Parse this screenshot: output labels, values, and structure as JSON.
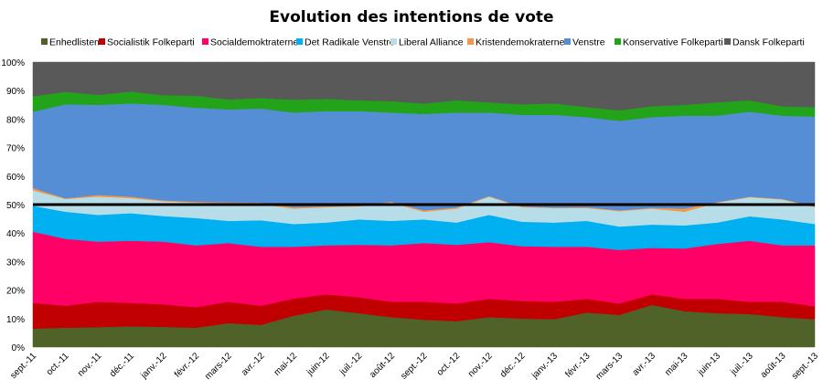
{
  "chart_data": {
    "type": "area",
    "stacked": "percent",
    "title": "Evolution des intentions de vote",
    "xlabel": "",
    "ylabel": "",
    "ylim": [
      0,
      100
    ],
    "yticks": [
      "0%",
      "10%",
      "20%",
      "30%",
      "40%",
      "50%",
      "60%",
      "70%",
      "80%",
      "90%",
      "100%"
    ],
    "grid": false,
    "legend": "top",
    "reference_line": 50,
    "reference_line_color": "#000000",
    "categories": [
      "sept.-11",
      "oct.-11",
      "nov.-11",
      "déc.-11",
      "janv.-12",
      "févr.-12",
      "mars-12",
      "avr.-12",
      "mai-12",
      "juin-12",
      "juil.-12",
      "août-12",
      "sept.-12",
      "oct.-12",
      "nov.-12",
      "déc.-12",
      "janv.-13",
      "févr.-13",
      "mars-13",
      "avr.-13",
      "mai-13",
      "juin-13",
      "juil.-13",
      "août-13",
      "sept.-13"
    ],
    "series": [
      {
        "name": "Enhedlisten",
        "color": "#4f6228",
        "values": [
          6.5,
          6.8,
          7.0,
          7.3,
          7.1,
          6.8,
          8.4,
          7.8,
          11.0,
          13.2,
          11.9,
          10.5,
          9.6,
          9.1,
          10.5,
          10.0,
          9.8,
          12.1,
          11.3,
          14.8,
          12.6,
          11.9,
          11.6,
          10.5,
          9.8
        ]
      },
      {
        "name": "Socialistik Folkeparti",
        "color": "#c00000",
        "values": [
          9.0,
          7.7,
          8.9,
          8.2,
          7.9,
          7.2,
          7.5,
          6.7,
          6.0,
          5.3,
          5.6,
          5.4,
          6.3,
          6.2,
          6.4,
          6.2,
          6.1,
          4.8,
          4.0,
          3.7,
          4.3,
          5.0,
          4.3,
          5.4,
          4.5
        ]
      },
      {
        "name": "Socialdemoktraterne",
        "color": "#ff0066",
        "values": [
          25.0,
          23.5,
          21.1,
          21.8,
          22.0,
          21.7,
          20.6,
          20.7,
          18.2,
          17.2,
          18.4,
          19.8,
          20.6,
          20.6,
          19.9,
          19.2,
          19.3,
          18.3,
          18.8,
          16.3,
          17.7,
          19.3,
          21.4,
          19.8,
          21.4
        ]
      },
      {
        "name": "Det Radikale Venstre",
        "color": "#00b0f0",
        "values": [
          9.1,
          9.5,
          9.4,
          9.7,
          9.0,
          9.6,
          7.8,
          9.3,
          8.0,
          8.0,
          8.9,
          8.6,
          8.3,
          7.8,
          9.6,
          8.6,
          8.5,
          9.1,
          8.2,
          8.2,
          8.1,
          7.5,
          8.6,
          9.1,
          7.5
        ]
      },
      {
        "name": "Liberal Alliance",
        "color": "#b7dee8",
        "values": [
          5.4,
          4.5,
          6.4,
          5.3,
          5.2,
          5.4,
          6.2,
          5.7,
          5.4,
          5.4,
          4.6,
          6.4,
          2.7,
          4.9,
          6.4,
          5.1,
          5.1,
          4.5,
          5.4,
          5.6,
          4.8,
          7.0,
          6.7,
          7.0,
          5.9
        ]
      },
      {
        "name": "Kristendemokraterne",
        "color": "#f79646",
        "values": [
          0.8,
          0.2,
          0.6,
          0.5,
          0.3,
          0.3,
          0.3,
          0.5,
          0.5,
          0.3,
          0.2,
          0.3,
          0.5,
          0.4,
          0.2,
          0.3,
          0.2,
          0.3,
          0.3,
          0.3,
          1.1,
          0.2,
          0.2,
          0.2,
          0.3
        ]
      },
      {
        "name": "Venstre",
        "color": "#558ed5",
        "values": [
          26.8,
          33.0,
          31.6,
          32.7,
          33.5,
          33.0,
          32.6,
          33.0,
          33.2,
          33.4,
          33.2,
          31.3,
          33.8,
          33.3,
          29.3,
          32.1,
          32.5,
          31.6,
          31.4,
          31.8,
          32.6,
          30.3,
          29.8,
          29.2,
          31.5
        ]
      },
      {
        "name": "Konservative Folkeparti",
        "color": "#22a31a",
        "values": [
          5.4,
          4.4,
          3.5,
          4.2,
          3.4,
          4.2,
          3.5,
          3.7,
          4.5,
          4.3,
          3.8,
          4.0,
          3.7,
          4.3,
          3.6,
          3.7,
          4.0,
          3.5,
          3.7,
          3.8,
          3.8,
          4.7,
          4.0,
          3.3,
          3.3
        ]
      },
      {
        "name": "Dansk Folkeparti",
        "color": "#595959",
        "values": [
          12.0,
          10.4,
          11.5,
          10.3,
          11.6,
          11.8,
          13.1,
          12.6,
          13.2,
          12.9,
          13.4,
          13.7,
          14.5,
          13.4,
          14.1,
          14.8,
          14.5,
          15.8,
          16.9,
          15.5,
          15.0,
          14.1,
          13.4,
          15.5,
          15.8
        ]
      }
    ]
  }
}
